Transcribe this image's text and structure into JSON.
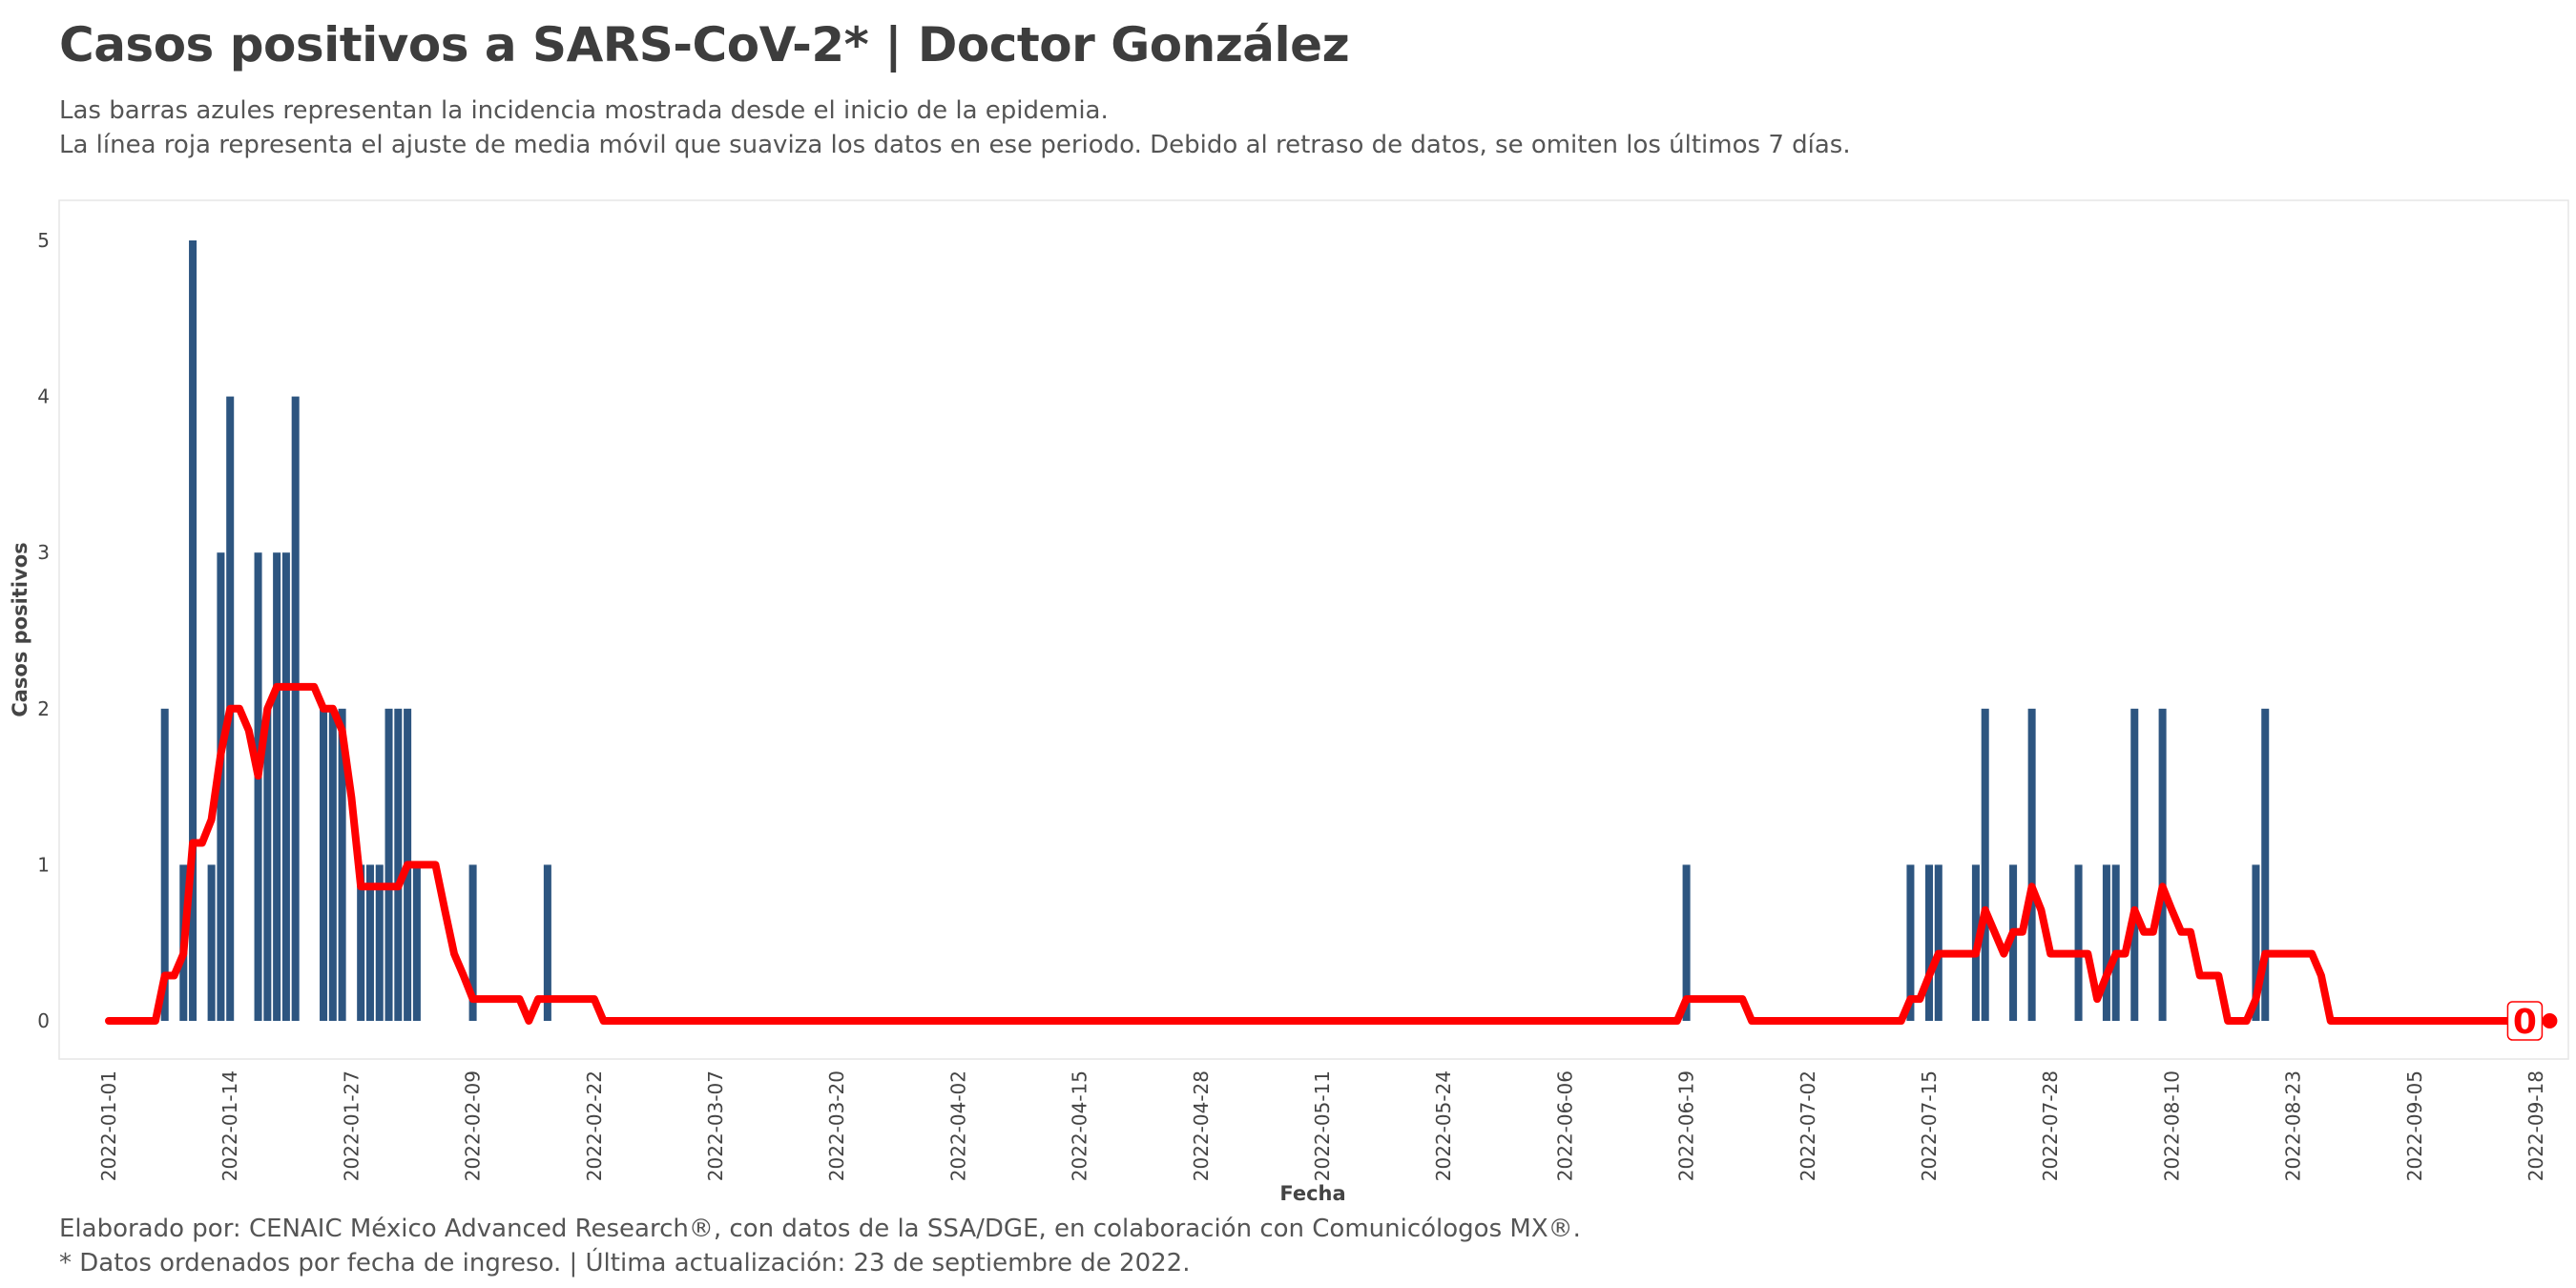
{
  "header": {
    "title": "Casos positivos a SARS-CoV-2* | Doctor González",
    "subtitle_line1": "Las barras azules representan la incidencia mostrada desde el inicio de la epidemia.",
    "subtitle_line2": "La línea roja representa el ajuste de media móvil que suaviza los datos en ese periodo. Debido al retraso de datos, se omiten los últimos 7 días."
  },
  "footer": {
    "caption_line1": "Elaborado por: CENAIC México Advanced Research®, con datos de la SSA/DGE, en colaboración con Comunicólogos MX®.",
    "caption_line2": "* Datos ordenados por fecha de ingreso. | Última actualización: 23 de septiembre de 2022."
  },
  "chart_data": {
    "type": "bar",
    "xlabel": "Fecha",
    "ylabel": "Casos positivos",
    "ylim": [
      0,
      5
    ],
    "y_ticks": [
      0,
      1,
      2,
      3,
      4,
      5
    ],
    "x_range": [
      "2022-01-01",
      "2022-09-18"
    ],
    "x_ticks": [
      "2022-01-01",
      "2022-01-14",
      "2022-01-27",
      "2022-02-09",
      "2022-02-22",
      "2022-03-07",
      "2022-03-20",
      "2022-04-02",
      "2022-04-15",
      "2022-04-28",
      "2022-05-11",
      "2022-05-24",
      "2022-06-06",
      "2022-06-19",
      "2022-07-02",
      "2022-07-15",
      "2022-07-28",
      "2022-08-10",
      "2022-08-23",
      "2022-09-05",
      "2022-09-18"
    ],
    "grid": false,
    "bar_color": "#2d5580",
    "line_color": "#ff0000",
    "series": [
      {
        "kind": "bar",
        "points": [
          [
            "2022-01-07",
            2
          ],
          [
            "2022-01-09",
            1
          ],
          [
            "2022-01-10",
            5
          ],
          [
            "2022-01-12",
            1
          ],
          [
            "2022-01-13",
            3
          ],
          [
            "2022-01-14",
            4
          ],
          [
            "2022-01-17",
            3
          ],
          [
            "2022-01-18",
            2
          ],
          [
            "2022-01-19",
            3
          ],
          [
            "2022-01-20",
            3
          ],
          [
            "2022-01-21",
            4
          ],
          [
            "2022-01-24",
            2
          ],
          [
            "2022-01-25",
            2
          ],
          [
            "2022-01-26",
            2
          ],
          [
            "2022-01-28",
            1
          ],
          [
            "2022-01-29",
            1
          ],
          [
            "2022-01-30",
            1
          ],
          [
            "2022-01-31",
            2
          ],
          [
            "2022-02-01",
            2
          ],
          [
            "2022-02-02",
            2
          ],
          [
            "2022-02-03",
            1
          ],
          [
            "2022-02-09",
            1
          ],
          [
            "2022-02-17",
            1
          ],
          [
            "2022-06-19",
            1
          ],
          [
            "2022-07-13",
            1
          ],
          [
            "2022-07-15",
            1
          ],
          [
            "2022-07-16",
            1
          ],
          [
            "2022-07-20",
            1
          ],
          [
            "2022-07-21",
            2
          ],
          [
            "2022-07-24",
            1
          ],
          [
            "2022-07-26",
            2
          ],
          [
            "2022-07-31",
            1
          ],
          [
            "2022-08-03",
            1
          ],
          [
            "2022-08-04",
            1
          ],
          [
            "2022-08-06",
            2
          ],
          [
            "2022-08-09",
            2
          ],
          [
            "2022-08-19",
            1
          ],
          [
            "2022-08-20",
            2
          ]
        ]
      },
      {
        "kind": "line",
        "points": [
          [
            "2022-01-01",
            0
          ],
          [
            "2022-01-06",
            0
          ],
          [
            "2022-01-07",
            0.29
          ],
          [
            "2022-01-08",
            0.29
          ],
          [
            "2022-01-09",
            0.43
          ],
          [
            "2022-01-10",
            1.14
          ],
          [
            "2022-01-11",
            1.14
          ],
          [
            "2022-01-12",
            1.29
          ],
          [
            "2022-01-13",
            1.71
          ],
          [
            "2022-01-14",
            2.0
          ],
          [
            "2022-01-15",
            2.0
          ],
          [
            "2022-01-16",
            1.86
          ],
          [
            "2022-01-17",
            1.57
          ],
          [
            "2022-01-18",
            2.0
          ],
          [
            "2022-01-19",
            2.14
          ],
          [
            "2022-01-22",
            2.14
          ],
          [
            "2022-01-23",
            2.14
          ],
          [
            "2022-01-24",
            2.0
          ],
          [
            "2022-01-25",
            2.0
          ],
          [
            "2022-01-26",
            1.86
          ],
          [
            "2022-01-27",
            1.43
          ],
          [
            "2022-01-28",
            0.86
          ],
          [
            "2022-01-31",
            0.86
          ],
          [
            "2022-02-01",
            0.86
          ],
          [
            "2022-02-02",
            1.0
          ],
          [
            "2022-02-05",
            1.0
          ],
          [
            "2022-02-06",
            0.71
          ],
          [
            "2022-02-07",
            0.43
          ],
          [
            "2022-02-08",
            0.29
          ],
          [
            "2022-02-09",
            0.14
          ],
          [
            "2022-02-14",
            0.14
          ],
          [
            "2022-02-15",
            0
          ],
          [
            "2022-02-16",
            0.14
          ],
          [
            "2022-02-22",
            0.14
          ],
          [
            "2022-02-23",
            0
          ],
          [
            "2022-06-18",
            0
          ],
          [
            "2022-06-19",
            0.14
          ],
          [
            "2022-06-25",
            0.14
          ],
          [
            "2022-06-26",
            0
          ],
          [
            "2022-07-12",
            0
          ],
          [
            "2022-07-13",
            0.14
          ],
          [
            "2022-07-14",
            0.14
          ],
          [
            "2022-07-15",
            0.29
          ],
          [
            "2022-07-16",
            0.43
          ],
          [
            "2022-07-20",
            0.43
          ],
          [
            "2022-07-21",
            0.71
          ],
          [
            "2022-07-23",
            0.43
          ],
          [
            "2022-07-24",
            0.57
          ],
          [
            "2022-07-25",
            0.57
          ],
          [
            "2022-07-26",
            0.86
          ],
          [
            "2022-07-27",
            0.71
          ],
          [
            "2022-07-28",
            0.43
          ],
          [
            "2022-08-01",
            0.43
          ],
          [
            "2022-08-02",
            0.14
          ],
          [
            "2022-08-03",
            0.29
          ],
          [
            "2022-08-04",
            0.43
          ],
          [
            "2022-08-05",
            0.43
          ],
          [
            "2022-08-06",
            0.71
          ],
          [
            "2022-08-07",
            0.57
          ],
          [
            "2022-08-08",
            0.57
          ],
          [
            "2022-08-09",
            0.86
          ],
          [
            "2022-08-10",
            0.71
          ],
          [
            "2022-08-11",
            0.57
          ],
          [
            "2022-08-12",
            0.57
          ],
          [
            "2022-08-13",
            0.29
          ],
          [
            "2022-08-15",
            0.29
          ],
          [
            "2022-08-16",
            0
          ],
          [
            "2022-08-18",
            0
          ],
          [
            "2022-08-19",
            0.14
          ],
          [
            "2022-08-20",
            0.43
          ],
          [
            "2022-08-25",
            0.43
          ],
          [
            "2022-08-26",
            0.29
          ],
          [
            "2022-08-27",
            0
          ],
          [
            "2022-09-16",
            0
          ]
        ]
      }
    ],
    "end_label": "0"
  }
}
